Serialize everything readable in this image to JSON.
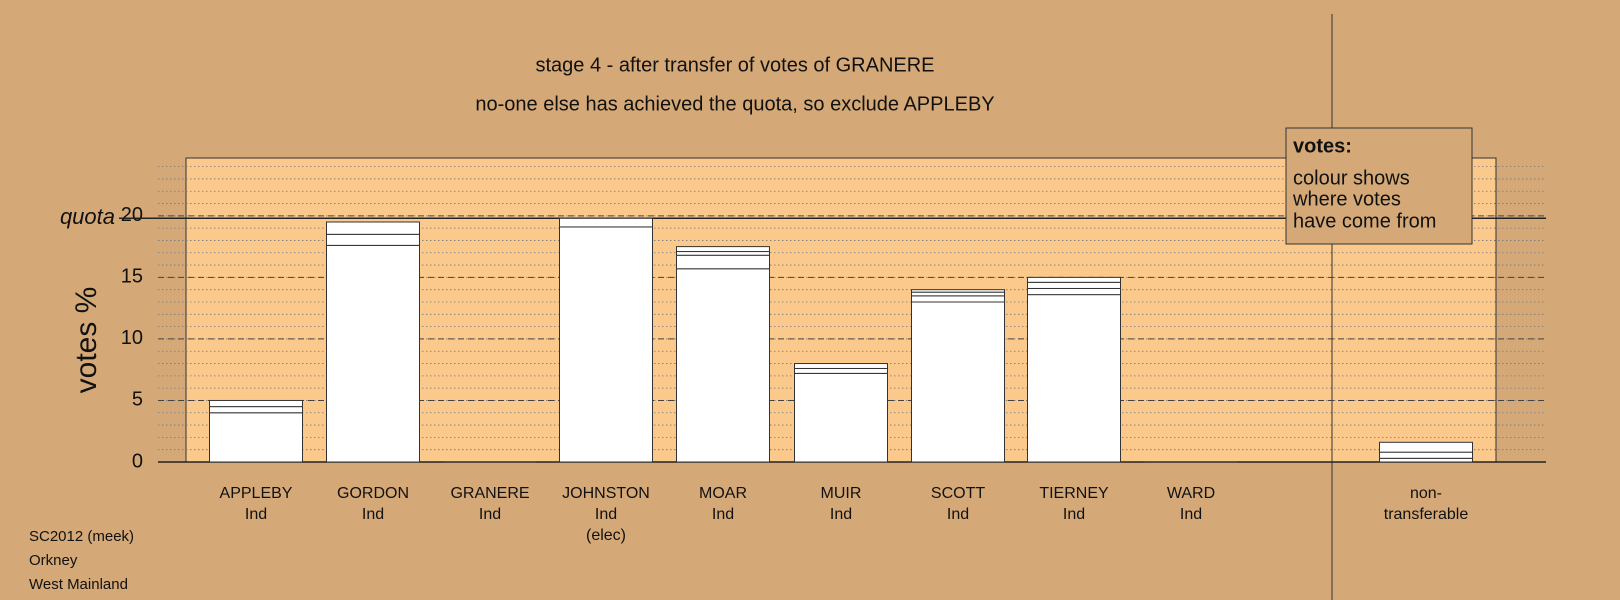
{
  "chart_data": {
    "type": "stacked-bar",
    "title": "stage 4 - after transfer of votes of GRANERE",
    "subtitle": "no-one else has achieved the quota, so exclude APPLEBY",
    "y_label": "votes %",
    "categories": [
      [
        "APPLEBY",
        "Ind"
      ],
      [
        "GORDON",
        "Ind"
      ],
      [
        "GRANERE",
        "Ind"
      ],
      [
        "JOHNSTON",
        "Ind",
        "(elec)"
      ],
      [
        "MOAR",
        "Ind"
      ],
      [
        "MUIR",
        "Ind"
      ],
      [
        "SCOTT",
        "Ind"
      ],
      [
        "TIERNEY",
        "Ind"
      ],
      [
        "WARD",
        "Ind"
      ],
      [
        "non-",
        "transferable"
      ]
    ],
    "stacks": [
      [
        4.0,
        0.5,
        0.5
      ],
      [
        17.6,
        0.9,
        1.0
      ],
      [
        0
      ],
      [
        19.1,
        0.7
      ],
      [
        15.7,
        1.1,
        0.3,
        0.4
      ],
      [
        7.2,
        0.4,
        0.4
      ],
      [
        13.0,
        0.5,
        0.3,
        0.2
      ],
      [
        13.6,
        0.5,
        0.5,
        0.4
      ],
      [
        0
      ],
      [
        0.3,
        0.5,
        0.8
      ]
    ],
    "color": "#ffffff",
    "quota": 19.8,
    "quota_label": "quota",
    "ylim": [
      0,
      24.7
    ],
    "yticks": [
      0,
      5,
      10,
      15,
      20
    ],
    "minor_step": 1,
    "grid": true,
    "legend": {
      "title": "votes:",
      "lines": [
        "colour shows",
        "where votes",
        "have come from"
      ]
    },
    "footer": [
      "SC2012 (meek)",
      "Orkney",
      "West Mainland"
    ]
  }
}
